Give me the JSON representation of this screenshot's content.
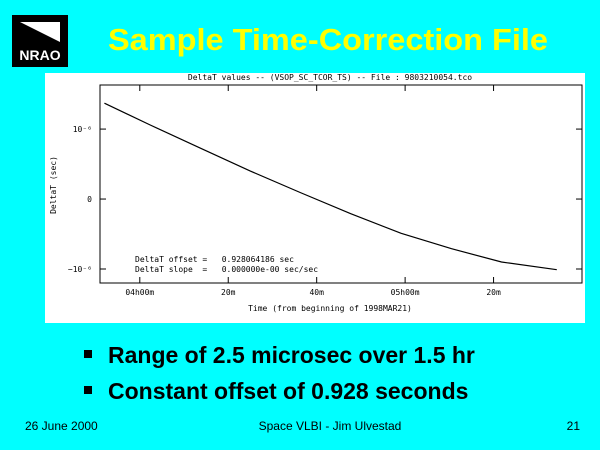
{
  "header": {
    "logo": "NRAO",
    "title": "Sample Time-Correction File"
  },
  "chart_data": {
    "type": "line",
    "title": "DeltaT values -- (VSOP_SC_TCOR_TS) -- File : 9803210054.tco",
    "ylabel": "DeltaT (sec)",
    "xlabel": "Time (from beginning of 1998MAR21)",
    "x": [
      232.0,
      242.3,
      253.6,
      265.0,
      276.4,
      287.7,
      299.1,
      310.5,
      321.8,
      334.3
    ],
    "values": [
      1.37e-06,
      1.06e-06,
      7.3e-07,
      4e-07,
      9e-08,
      -2.1e-07,
      -4.9e-07,
      -7.1e-07,
      -9e-07,
      -1.01e-06
    ],
    "color": "#000000",
    "xlim": [
      231,
      340
    ],
    "xticks": [
      {
        "value": 240,
        "label": "04h00m"
      },
      {
        "value": 260,
        "label": "20m"
      },
      {
        "value": 280,
        "label": "40m"
      },
      {
        "value": 300,
        "label": "05h00m"
      },
      {
        "value": 320,
        "label": "20m"
      }
    ],
    "ylim": [
      -1.2e-06,
      1.63e-06
    ],
    "yticks": [
      {
        "value": 1e-06,
        "label": "10⁻⁶"
      },
      0,
      {
        "value": -1e-06,
        "label": "−10⁻⁶"
      }
    ],
    "annotations": [
      "DeltaT offset =   0.928064186 sec",
      "DeltaT slope  =   0.000000e-00 sec/sec"
    ]
  },
  "bullets": [
    "Range of 2.5 microsec over 1.5 hr",
    "Constant offset of 0.928 seconds"
  ],
  "footer": {
    "date": "26 June 2000",
    "center": "Space VLBI - Jim Ulvestad",
    "page": "21"
  }
}
